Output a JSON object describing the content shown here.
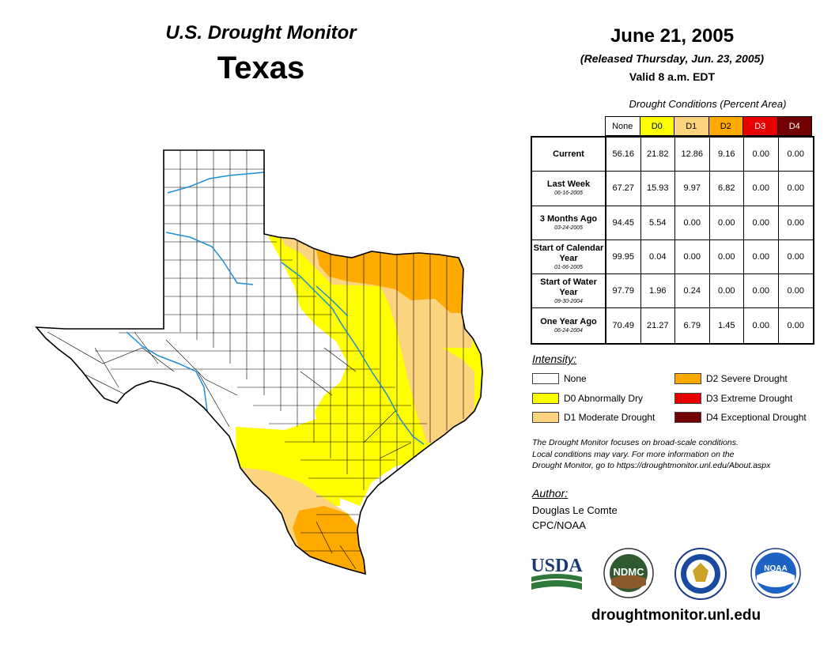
{
  "header": {
    "monitor_title": "U.S. Drought Monitor",
    "state": "Texas",
    "date": "June 21, 2005",
    "released": "(Released Thursday, Jun. 23, 2005)",
    "valid": "Valid 8 a.m. EDT"
  },
  "table": {
    "caption": "Drought Conditions (Percent Area)",
    "columns": [
      {
        "label": "None",
        "color": "#ffffff",
        "text_color": "#000000"
      },
      {
        "label": "D0",
        "color": "#ffff00",
        "text_color": "#000000"
      },
      {
        "label": "D1",
        "color": "#fcd37f",
        "text_color": "#000000"
      },
      {
        "label": "D2",
        "color": "#ffaa00",
        "text_color": "#000000"
      },
      {
        "label": "D3",
        "color": "#e60000",
        "text_color": "#ffffff"
      },
      {
        "label": "D4",
        "color": "#730000",
        "text_color": "#ffffff"
      }
    ],
    "rows": [
      {
        "label": "Current",
        "date": "",
        "values": [
          "56.16",
          "21.82",
          "12.86",
          "9.16",
          "0.00",
          "0.00"
        ]
      },
      {
        "label": "Last Week",
        "date": "06-16-2005",
        "values": [
          "67.27",
          "15.93",
          "9.97",
          "6.82",
          "0.00",
          "0.00"
        ]
      },
      {
        "label": "3 Months Ago",
        "date": "03-24-2005",
        "values": [
          "94.45",
          "5.54",
          "0.00",
          "0.00",
          "0.00",
          "0.00"
        ]
      },
      {
        "label": "Start of Calendar Year",
        "date": "01-06-2005",
        "values": [
          "99.95",
          "0.04",
          "0.00",
          "0.00",
          "0.00",
          "0.00"
        ]
      },
      {
        "label": "Start of Water Year",
        "date": "09-30-2004",
        "values": [
          "97.79",
          "1.96",
          "0.24",
          "0.00",
          "0.00",
          "0.00"
        ]
      },
      {
        "label": "One Year Ago",
        "date": "06-24-2004",
        "values": [
          "70.49",
          "21.27",
          "6.79",
          "1.45",
          "0.00",
          "0.00"
        ]
      }
    ]
  },
  "legend": {
    "title": "Intensity:",
    "items": [
      {
        "label": "None",
        "color": "#ffffff"
      },
      {
        "label": "D0 Abnormally Dry",
        "color": "#ffff00"
      },
      {
        "label": "D1 Moderate Drought",
        "color": "#fcd37f"
      },
      {
        "label": "D2 Severe Drought",
        "color": "#ffaa00"
      },
      {
        "label": "D3 Extreme Drought",
        "color": "#e60000"
      },
      {
        "label": "D4 Exceptional Drought",
        "color": "#730000"
      }
    ]
  },
  "note": [
    "The Drought Monitor focuses on broad-scale conditions.",
    "Local conditions may vary. For more information on the",
    "Drought Monitor, go to https://droughtmonitor.unl.edu/About.aspx"
  ],
  "author": {
    "title": "Author:",
    "name": "Douglas Le Comte",
    "org": "CPC/NOAA"
  },
  "logos": {
    "usda": "USDA",
    "ndmc": "NDMC",
    "noaa": "NOAA"
  },
  "website": "droughtmonitor.unl.edu"
}
